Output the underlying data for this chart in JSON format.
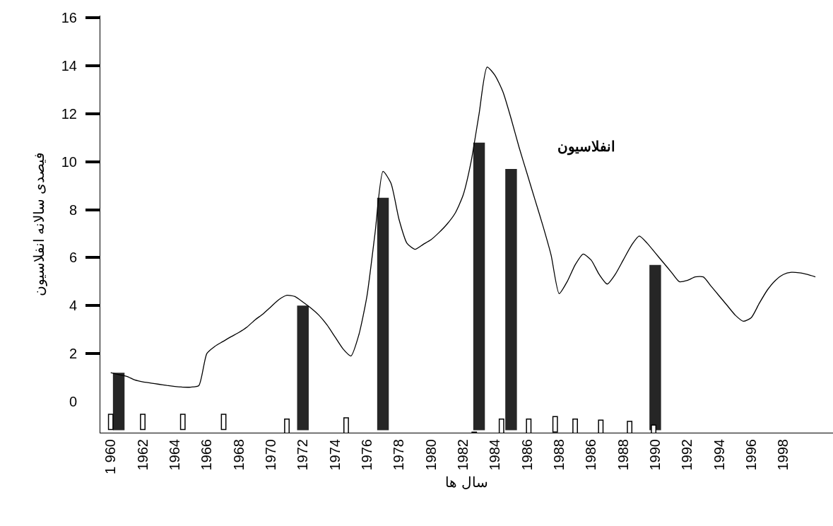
{
  "chart_data": {
    "type": "bar",
    "ylabel": "فیصدی سالانه انفلاسیون",
    "xlabel": "سال ها",
    "categories": [
      "1 960",
      null,
      null,
      null,
      "1962",
      null,
      null,
      null,
      "1964",
      null,
      null,
      null,
      "1966",
      null,
      null,
      null,
      "1968",
      null,
      null,
      null,
      "1970",
      null,
      null,
      null,
      "1972",
      null,
      null,
      null,
      "1974",
      null,
      null,
      null,
      "1976",
      null,
      null,
      null,
      "1978",
      null,
      null,
      null,
      "1980",
      null,
      null,
      null,
      "1982",
      null,
      null,
      null,
      "1984",
      null,
      null,
      null,
      "1986",
      null,
      null,
      null,
      "1988",
      null,
      null,
      null,
      "1986",
      null,
      null,
      null,
      "1988",
      null,
      null,
      null,
      "1990",
      null,
      null,
      null,
      "1992",
      null,
      null,
      null,
      "1994",
      null,
      null,
      null,
      "1996",
      null,
      null,
      null,
      "1998",
      null,
      null,
      null,
      null
    ],
    "ylim": [
      -1.3,
      16.1
    ],
    "yticks": [
      0,
      2,
      4,
      6,
      8,
      10,
      12,
      14,
      16
    ],
    "grid": false,
    "series": [
      {
        "color": "#262626",
        "base": [
          null,
          -1.2,
          null,
          null,
          null,
          null,
          null,
          null,
          null,
          null,
          null,
          null,
          null,
          null,
          null,
          null,
          null,
          null,
          null,
          null,
          null,
          null,
          null,
          null,
          -1.2,
          null,
          null,
          null,
          null,
          null,
          null,
          null,
          null,
          null,
          -1.2,
          null,
          null,
          null,
          null,
          null,
          null,
          null,
          null,
          null,
          null,
          null,
          -1.2,
          null,
          null,
          null,
          -1.2,
          null,
          null,
          null,
          null,
          null,
          null,
          null,
          null,
          null,
          null,
          null,
          null,
          null,
          null,
          null,
          null,
          null,
          -1.2,
          null,
          null,
          null,
          null,
          null,
          null,
          null,
          null,
          null,
          null,
          null,
          null,
          null,
          null,
          null,
          null,
          null,
          null,
          null,
          null
        ],
        "values": [
          null,
          2.4,
          null,
          null,
          null,
          null,
          null,
          null,
          null,
          null,
          null,
          null,
          null,
          null,
          null,
          null,
          null,
          null,
          null,
          null,
          null,
          null,
          null,
          null,
          5.2,
          null,
          null,
          null,
          null,
          null,
          null,
          null,
          null,
          null,
          9.7,
          null,
          null,
          null,
          null,
          null,
          null,
          null,
          null,
          null,
          null,
          null,
          12.0,
          null,
          null,
          null,
          10.9,
          null,
          null,
          null,
          null,
          null,
          null,
          null,
          null,
          null,
          null,
          null,
          null,
          null,
          null,
          null,
          null,
          null,
          6.9,
          null,
          null,
          null,
          null,
          null,
          null,
          null,
          null,
          null,
          null,
          null,
          null,
          null,
          null,
          null,
          null,
          null,
          null,
          null,
          null
        ]
      },
      {
        "type": "line",
        "name": "انفلاسیون",
        "color": "#000000",
        "marker": "none",
        "line_style": "solid",
        "values": [
          1.2,
          1.12,
          1.05,
          0.9,
          0.82,
          0.77,
          0.72,
          0.67,
          0.63,
          0.6,
          0.6,
          0.66,
          2.0,
          2.3,
          2.5,
          2.7,
          2.88,
          3.1,
          3.4,
          3.65,
          3.95,
          4.25,
          4.43,
          4.38,
          4.15,
          3.9,
          3.6,
          3.2,
          2.7,
          2.2,
          1.9,
          2.8,
          4.4,
          7.0,
          9.6,
          9.1,
          7.6,
          6.6,
          6.35,
          6.55,
          6.75,
          7.05,
          7.4,
          7.85,
          8.6,
          10.0,
          12.0,
          13.95,
          13.6,
          12.9,
          11.8,
          10.6,
          9.5,
          8.4,
          7.3,
          6.1,
          4.5,
          5.0,
          5.7,
          6.15,
          5.9,
          5.3,
          4.9,
          5.3,
          5.9,
          6.5,
          6.9,
          6.6,
          6.2,
          5.8,
          5.4,
          5.0,
          5.05,
          5.2,
          5.2,
          4.8,
          4.4,
          4.0,
          3.6,
          3.35,
          3.5,
          4.1,
          4.65,
          5.05,
          5.3,
          5.39,
          5.37,
          5.3,
          5.2
        ]
      }
    ]
  }
}
